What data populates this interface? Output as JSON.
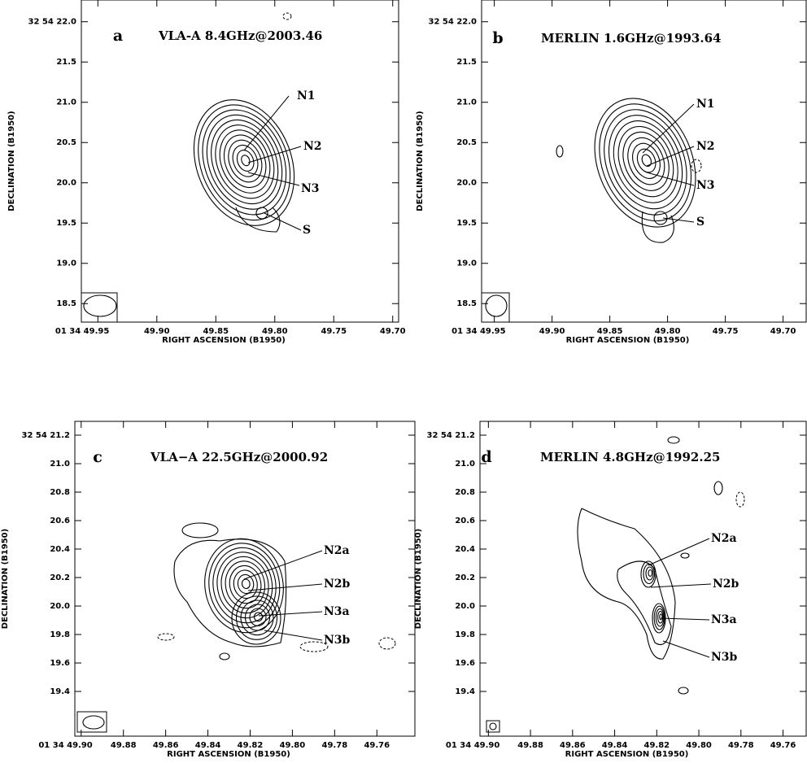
{
  "chart_data": [
    {
      "type": "contour",
      "panel": "a",
      "title": "VLA-A 8.4GHz@2003.46",
      "x_label": "RIGHT ASCENSION (B1950)",
      "y_label": "DECLINATION (B1950)",
      "xlim": [
        49.964,
        49.695
      ],
      "xticks": [
        {
          "value": 49.95,
          "label": "01 34 49.95"
        },
        {
          "value": 49.9,
          "label": "49.90"
        },
        49.85,
        {
          "value": 49.8,
          "label": "49.80"
        },
        49.75,
        {
          "value": 49.7,
          "label": "49.70"
        }
      ],
      "ylim": [
        18.27,
        22.27
      ],
      "yticks": [
        18.5,
        {
          "value": 19,
          "label": "19.0"
        },
        19.5,
        {
          "value": 20,
          "label": "20.0"
        },
        20.5,
        {
          "value": 21,
          "label": "21.0"
        },
        21.5,
        {
          "value": 22,
          "label": "32 54 22.0"
        }
      ],
      "annotations": [
        "N1",
        "N2",
        "N3",
        "S"
      ]
    },
    {
      "type": "contour",
      "panel": "b",
      "title": "MERLIN 1.6GHz@1993.64",
      "x_label": "RIGHT ASCENSION (B1950)",
      "y_label": "DECLINATION (B1950)",
      "xlim": [
        49.961,
        49.68
      ],
      "xticks": [
        {
          "value": 49.95,
          "label": "01 34 49.95"
        },
        {
          "value": 49.9,
          "label": "49.90"
        },
        49.85,
        {
          "value": 49.8,
          "label": "49.80"
        },
        49.75,
        {
          "value": 49.7,
          "label": "49.70"
        }
      ],
      "ylim": [
        18.27,
        22.27
      ],
      "yticks": [
        18.5,
        {
          "value": 19,
          "label": "19.0"
        },
        19.5,
        {
          "value": 20,
          "label": "20.0"
        },
        20.5,
        {
          "value": 21,
          "label": "21.0"
        },
        21.5,
        {
          "value": 22,
          "label": "32 54 22.0"
        }
      ],
      "annotations": [
        "N1",
        "N2",
        "N3",
        "S"
      ]
    },
    {
      "type": "contour",
      "panel": "c",
      "title": "VLA−A 22.5GHz@2000.92",
      "x_label": "RIGHT ASCENSION (B1950)",
      "y_label": "DECLINATION (B1950)",
      "xlim": [
        49.903,
        49.742
      ],
      "xticks": [
        {
          "value": 49.9,
          "label": "01 34 49.90"
        },
        49.88,
        49.86,
        49.84,
        49.82,
        {
          "value": 49.8,
          "label": "49.80"
        },
        49.78,
        49.76
      ],
      "ylim": [
        19.086,
        21.297
      ],
      "yticks": [
        19.4,
        19.6,
        19.8,
        {
          "value": 20,
          "label": "20.0"
        },
        20.2,
        20.4,
        20.6,
        20.8,
        {
          "value": 21,
          "label": "21.0"
        },
        {
          "value": 21.2,
          "label": "32 54 21.2"
        }
      ],
      "annotations": [
        "N2a",
        "N2b",
        "N3a",
        "N3b"
      ]
    },
    {
      "type": "contour",
      "panel": "d",
      "title": "MERLIN 4.8GHz@1992.25",
      "x_label": "RIGHT ASCENSION (B1950)",
      "y_label": "DECLINATION (B1950)",
      "xlim": [
        49.904,
        49.749
      ],
      "xticks": [
        {
          "value": 49.9,
          "label": "01 34 49.90"
        },
        49.88,
        49.86,
        49.84,
        49.82,
        {
          "value": 49.8,
          "label": "49.80"
        },
        49.78,
        49.76
      ],
      "ylim": [
        19.086,
        21.297
      ],
      "yticks": [
        19.4,
        19.6,
        19.8,
        {
          "value": 20,
          "label": "20.0"
        },
        20.2,
        20.4,
        20.6,
        20.8,
        {
          "value": 21,
          "label": "21.0"
        },
        {
          "value": 21.2,
          "label": "32 54 21.2"
        }
      ],
      "annotations": [
        "N2a",
        "N2b",
        "N3a",
        "N3b"
      ]
    }
  ]
}
